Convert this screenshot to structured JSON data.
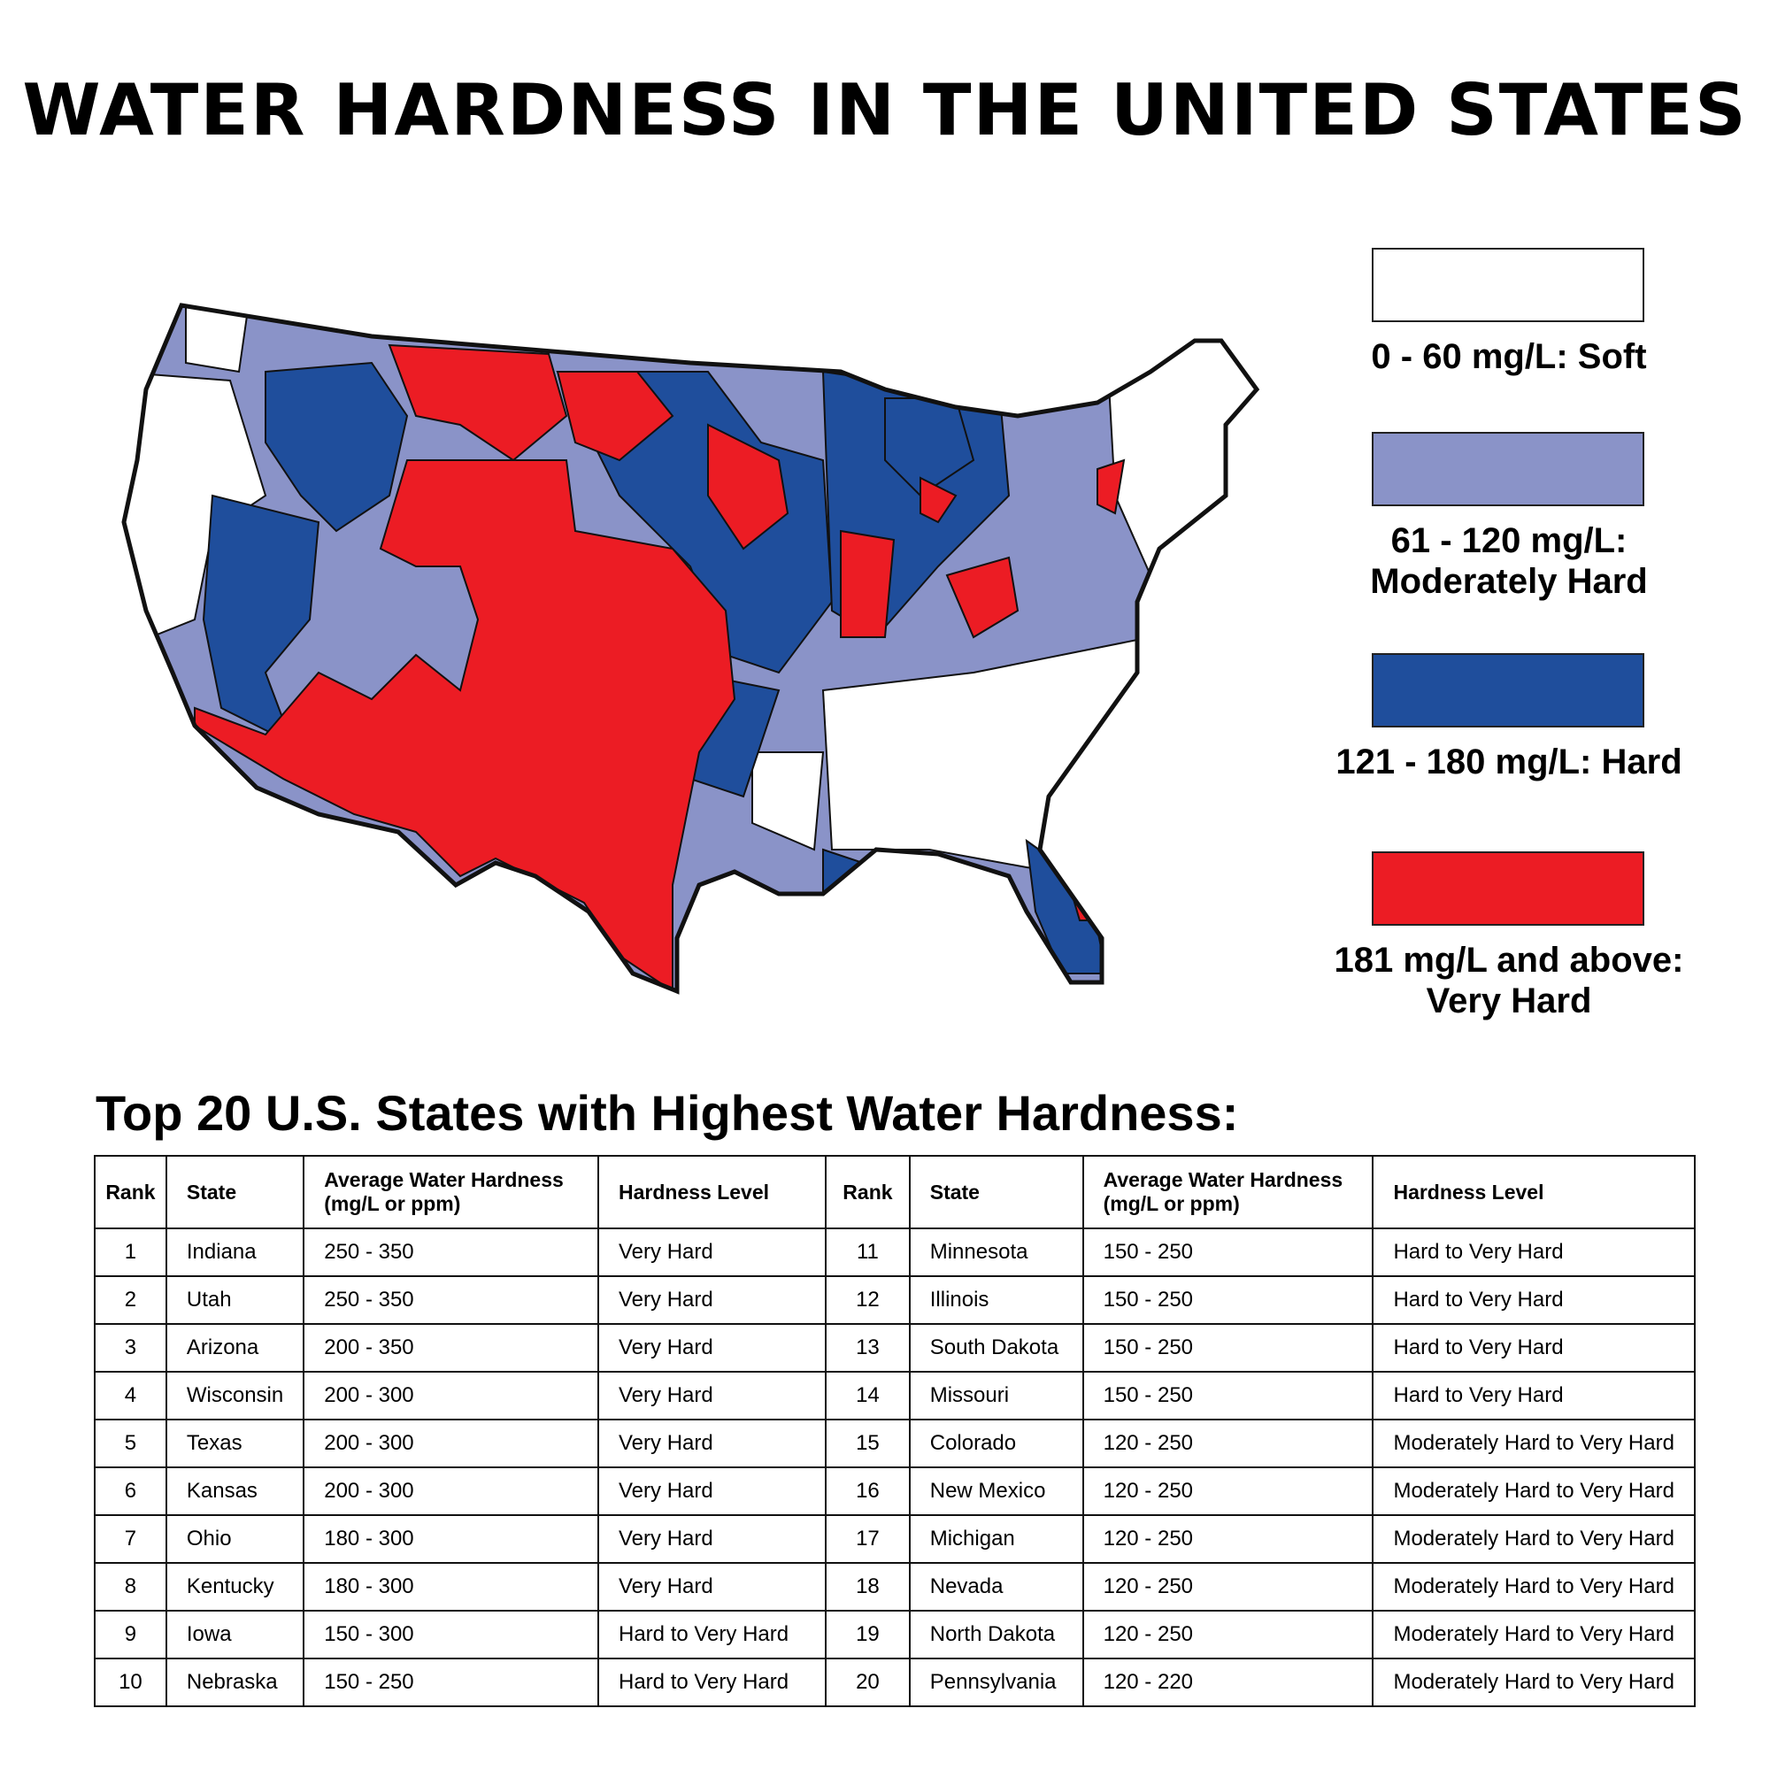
{
  "title": "WATER HARDNESS IN THE UNITED STATES",
  "legend": [
    {
      "lines": [
        "0 - 60 mg/L: Soft"
      ],
      "color": "#ffffff"
    },
    {
      "lines": [
        "61 - 120 mg/L:",
        "Moderately Hard"
      ],
      "color": "#8a93c8"
    },
    {
      "lines": [
        "121 - 180 mg/L: Hard"
      ],
      "color": "#1f4e9c"
    },
    {
      "lines": [
        "181 mg/L and above:",
        "Very Hard"
      ],
      "color": "#ec1c24"
    }
  ],
  "table": {
    "title": "Top 20 U.S. States with Highest Water Hardness:",
    "headers": [
      "Rank",
      "State",
      "Average Water Hardness (mg/L or ppm)",
      "Hardness Level",
      "Rank",
      "State",
      "Average Water Hardness (mg/L or ppm)",
      "Hardness Level"
    ],
    "rows": [
      [
        1,
        "Indiana",
        "250 - 350",
        "Very Hard",
        11,
        "Minnesota",
        "150 - 250",
        "Hard to Very Hard"
      ],
      [
        2,
        "Utah",
        "250 - 350",
        "Very Hard",
        12,
        "Illinois",
        "150 - 250",
        "Hard to Very Hard"
      ],
      [
        3,
        "Arizona",
        "200 - 350",
        "Very Hard",
        13,
        "South Dakota",
        "150 - 250",
        "Hard to Very Hard"
      ],
      [
        4,
        "Wisconsin",
        "200 - 300",
        "Very Hard",
        14,
        "Missouri",
        "150 - 250",
        "Hard to Very Hard"
      ],
      [
        5,
        "Texas",
        "200 - 300",
        "Very Hard",
        15,
        "Colorado",
        "120 - 250",
        "Moderately Hard to Very Hard"
      ],
      [
        6,
        "Kansas",
        "200 - 300",
        "Very Hard",
        16,
        "New Mexico",
        "120 - 250",
        "Moderately Hard to Very Hard"
      ],
      [
        7,
        "Ohio",
        "180 - 300",
        "Very Hard",
        17,
        "Michigan",
        "120 - 250",
        "Moderately Hard to Very Hard"
      ],
      [
        8,
        "Kentucky",
        "180 - 300",
        "Very Hard",
        18,
        "Nevada",
        "120 - 250",
        "Moderately Hard to Very Hard"
      ],
      [
        9,
        "Iowa",
        "150 - 300",
        "Hard to Very Hard",
        19,
        "North Dakota",
        "120 - 250",
        "Moderately Hard to Very Hard"
      ],
      [
        10,
        "Nebraska",
        "150 - 250",
        "Hard to Very Hard",
        20,
        "Pennsylvania",
        "120 - 220",
        "Moderately Hard to Very Hard"
      ]
    ]
  }
}
